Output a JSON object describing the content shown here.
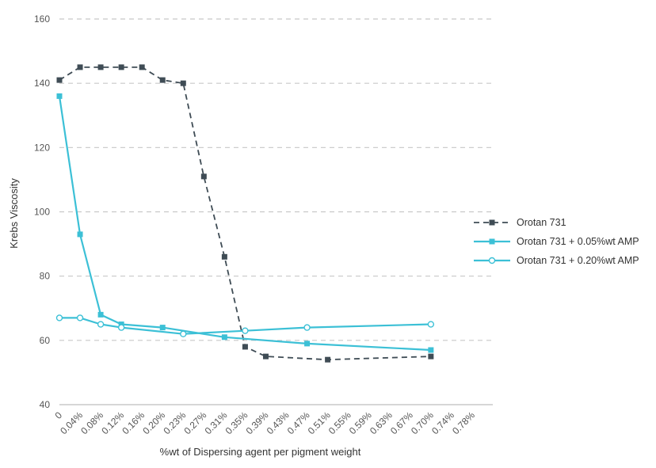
{
  "chart_data": {
    "type": "line",
    "title": "",
    "xlabel": "%wt of Dispersing agent per pigment weight",
    "ylabel": "Krebs Viscosity",
    "ylim": [
      40,
      160
    ],
    "yticks": [
      40,
      60,
      80,
      100,
      120,
      140,
      160
    ],
    "grid": true,
    "legend_position": "right",
    "categories": [
      "0",
      "0.04%",
      "0.08%",
      "0.12%",
      "0.16%",
      "0.20%",
      "0.23%",
      "0.27%",
      "0.31%",
      "0.35%",
      "0.39%",
      "0.43%",
      "0.47%",
      "0.51%",
      "0.55%",
      "0.59%",
      "0.63%",
      "0.67%",
      "0.70%",
      "0.74%",
      "0.78%"
    ],
    "series": [
      {
        "name": "Orotan 731",
        "color": "#3f4c55",
        "dash": true,
        "marker": "square-filled",
        "points": [
          {
            "x": "0",
            "y": 141
          },
          {
            "x": "0.04%",
            "y": 145
          },
          {
            "x": "0.08%",
            "y": 145
          },
          {
            "x": "0.12%",
            "y": 145
          },
          {
            "x": "0.16%",
            "y": 145
          },
          {
            "x": "0.20%",
            "y": 141
          },
          {
            "x": "0.23%",
            "y": 140
          },
          {
            "x": "0.27%",
            "y": 111
          },
          {
            "x": "0.31%",
            "y": 86
          },
          {
            "x": "0.35%",
            "y": 58
          },
          {
            "x": "0.39%",
            "y": 55
          },
          {
            "x": "0.51%",
            "y": 54
          },
          {
            "x": "0.70%",
            "y": 55
          }
        ]
      },
      {
        "name": "Orotan 731 + 0.05%wt AMP",
        "color": "#3cc0d6",
        "dash": false,
        "marker": "square-filled",
        "points": [
          {
            "x": "0",
            "y": 136
          },
          {
            "x": "0.04%",
            "y": 93
          },
          {
            "x": "0.08%",
            "y": 68
          },
          {
            "x": "0.12%",
            "y": 65
          },
          {
            "x": "0.20%",
            "y": 64
          },
          {
            "x": "0.31%",
            "y": 61
          },
          {
            "x": "0.47%",
            "y": 59
          },
          {
            "x": "0.70%",
            "y": 57
          }
        ]
      },
      {
        "name": "Orotan 731 + 0.20%wt AMP",
        "color": "#3cc0d6",
        "dash": false,
        "marker": "circle-open",
        "points": [
          {
            "x": "0",
            "y": 67
          },
          {
            "x": "0.04%",
            "y": 67
          },
          {
            "x": "0.08%",
            "y": 65
          },
          {
            "x": "0.12%",
            "y": 64
          },
          {
            "x": "0.23%",
            "y": 62
          },
          {
            "x": "0.35%",
            "y": 63
          },
          {
            "x": "0.47%",
            "y": 64
          },
          {
            "x": "0.70%",
            "y": 65
          }
        ]
      }
    ]
  }
}
